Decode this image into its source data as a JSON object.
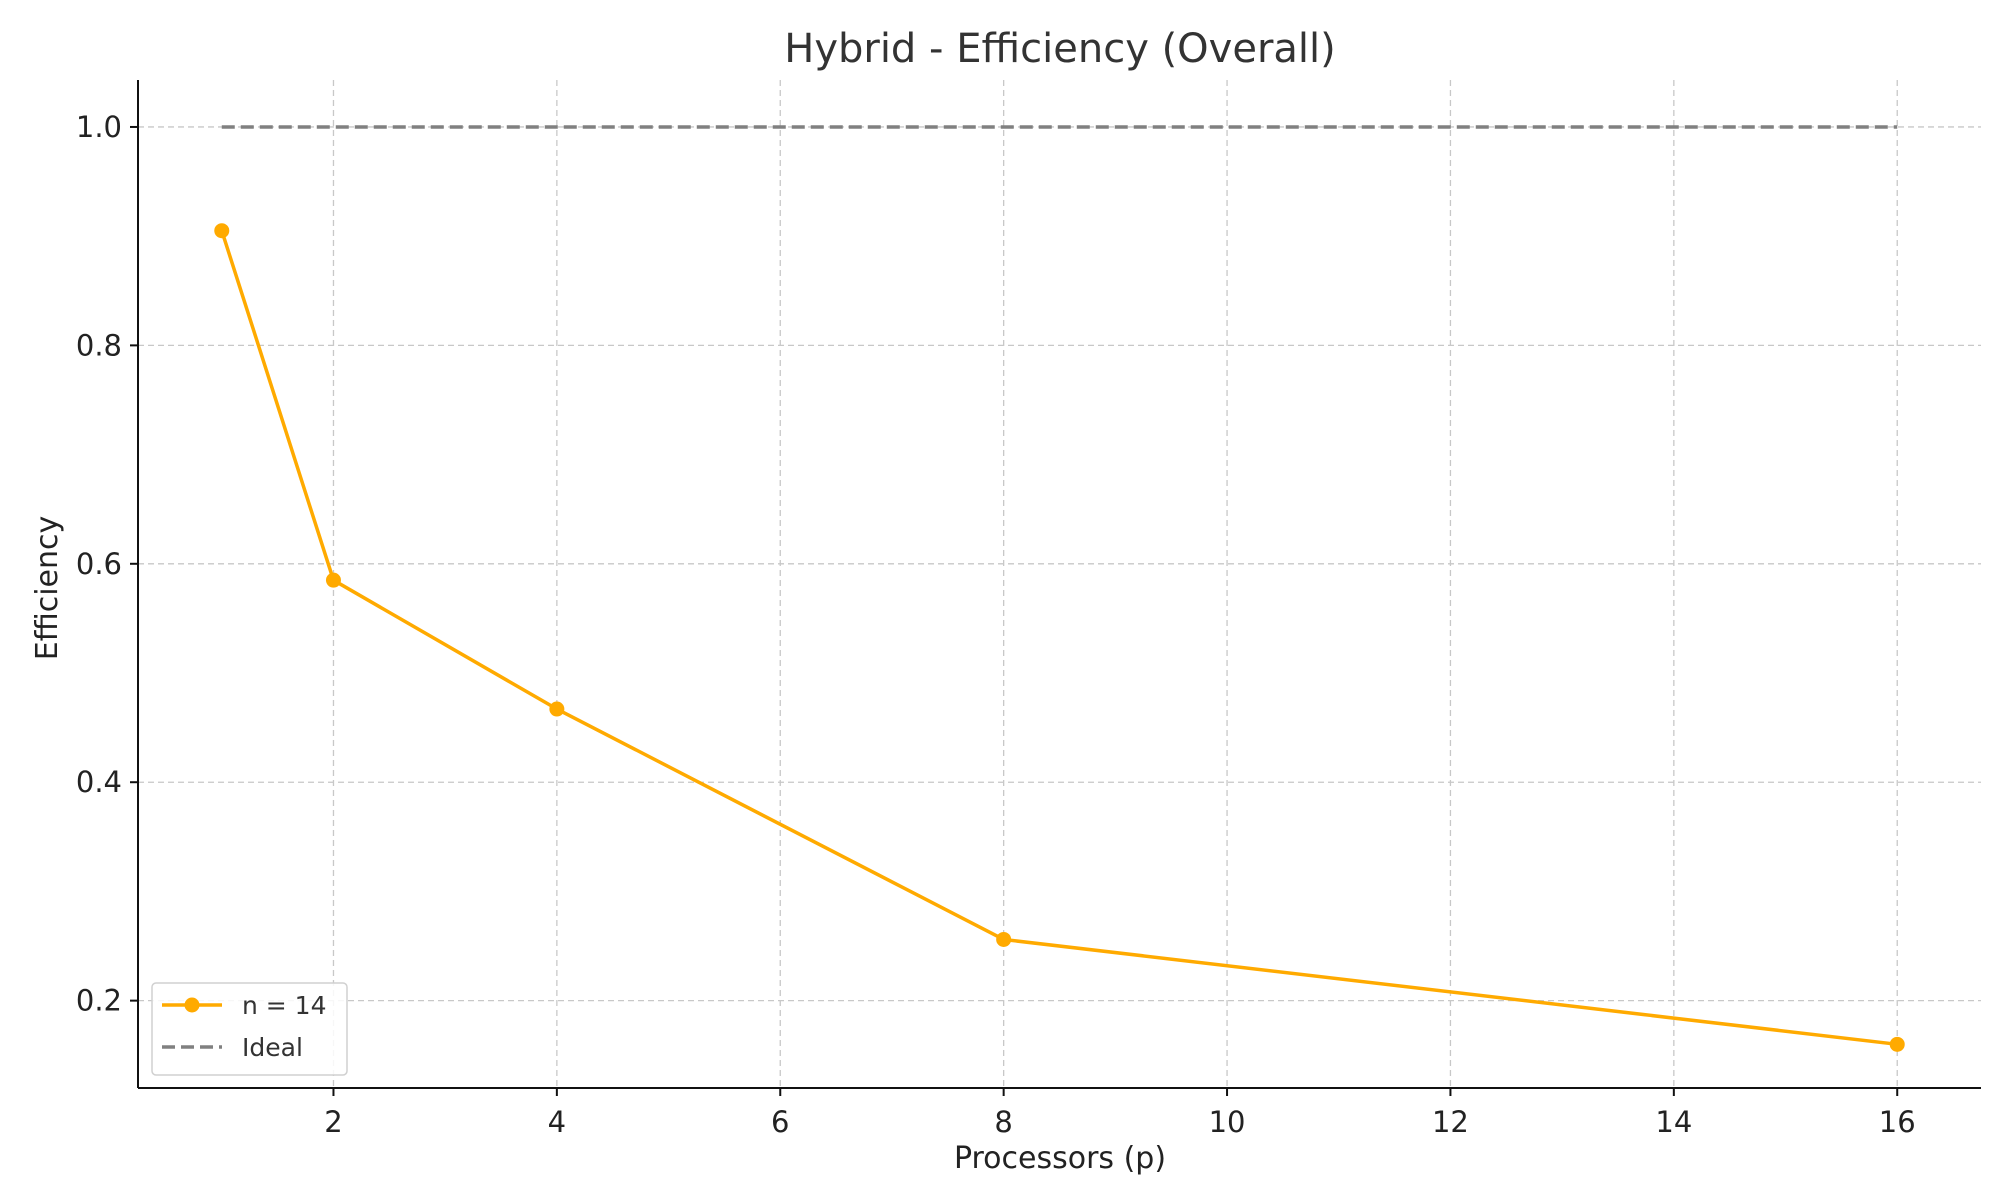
{
  "colors": {
    "series_n14": "#FFAA00",
    "ideal": "#808080"
  },
  "chart_data": {
    "type": "line",
    "title": "Hybrid - Efficiency (Overall)",
    "xlabel": "Processors (p)",
    "ylabel": "Efficiency",
    "xlim": [
      0.25,
      16.75
    ],
    "ylim": [
      0.12,
      1.043
    ],
    "xticks": [
      2,
      4,
      6,
      8,
      10,
      12,
      14,
      16
    ],
    "xtick_labels": [
      "2",
      "4",
      "6",
      "8",
      "10",
      "12",
      "14",
      "16"
    ],
    "yticks": [
      0.2,
      0.4,
      0.6,
      0.8,
      1.0
    ],
    "ytick_labels": [
      "0.2",
      "0.4",
      "0.6",
      "0.8",
      "1.0"
    ],
    "grid": true,
    "legend_position": "bottom-left",
    "series": [
      {
        "name": "n = 14",
        "style": "solid",
        "marker": "circle",
        "color": "#FFAA00",
        "x": [
          1,
          2,
          4,
          8,
          16
        ],
        "y": [
          0.905,
          0.585,
          0.467,
          0.256,
          0.16
        ]
      },
      {
        "name": "Ideal",
        "style": "dashed",
        "marker": "none",
        "color": "#808080",
        "x": [
          1,
          16
        ],
        "y": [
          1.0,
          1.0
        ]
      }
    ]
  }
}
